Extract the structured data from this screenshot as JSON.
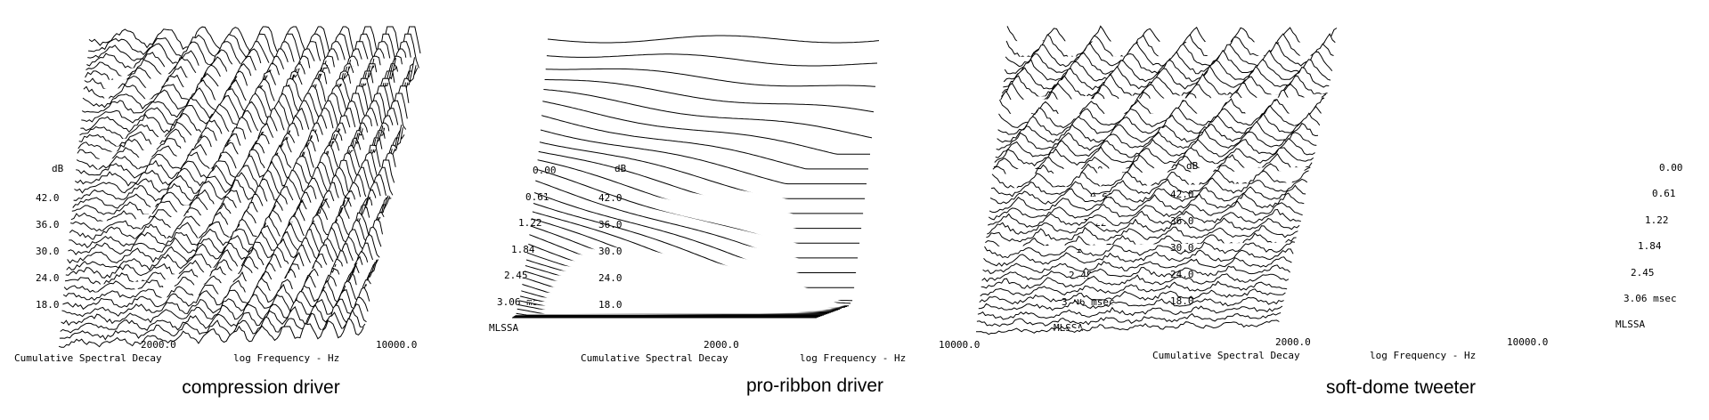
{
  "chart_data": [
    {
      "type": "waterfall",
      "caption": "compression driver",
      "y_unit": "dB",
      "y_ticks": [
        "42.0",
        "36.0",
        "30.0",
        "24.0",
        "18.0"
      ],
      "x_ticks": [
        "2000.0",
        "10000.0"
      ],
      "time_ticks": [
        "0.00",
        "0.61",
        "1.22",
        "1.84",
        "2.45",
        "3.06 msec"
      ],
      "footer_left": "Cumulative Spectral Decay",
      "footer_right": "log Frequency - Hz",
      "brand": "MLSSA",
      "style": "ringing"
    },
    {
      "type": "waterfall",
      "caption": "pro-ribbon driver",
      "y_unit": "dB",
      "y_ticks": [
        "42.0",
        "36.0",
        "30.0",
        "24.0",
        "18.0"
      ],
      "x_ticks": [
        "2000.0",
        "10000.0"
      ],
      "time_ticks": [
        "0.00",
        "0.61",
        "1.22",
        "1.84",
        "2.45",
        "3.06 msec"
      ],
      "footer_left": "Cumulative Spectral Decay",
      "footer_right": "log Frequency - Hz",
      "brand": "MLSSA",
      "style": "clean"
    },
    {
      "type": "waterfall",
      "caption": "soft-dome tweeter",
      "y_unit": "dB",
      "y_ticks": [
        "42.0",
        "36.0",
        "30.0",
        "24.0",
        "18.0"
      ],
      "x_ticks": [
        "2000.0",
        "10000.0"
      ],
      "time_ticks": [
        "0.00",
        "0.61",
        "1.22",
        "1.84",
        "2.45",
        "3.06 msec"
      ],
      "footer_left": "Cumulative Spectral Decay",
      "footer_right": "log Frequency - Hz",
      "brand": "MLSSA",
      "style": "resonant"
    }
  ]
}
